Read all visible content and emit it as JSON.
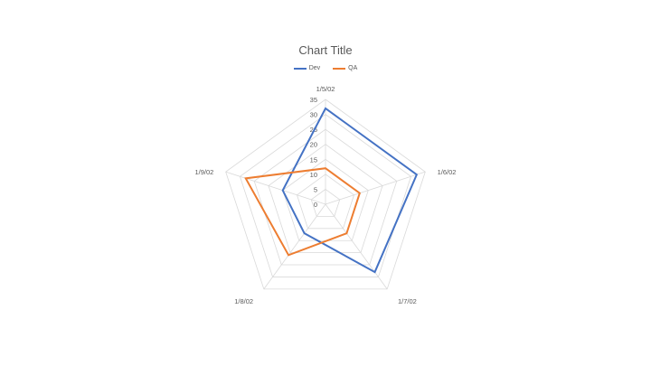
{
  "chart_data": {
    "type": "radar",
    "title": "Chart Title",
    "categories": [
      "1/5/02",
      "1/6/02",
      "1/7/02",
      "1/8/02",
      "1/9/02"
    ],
    "series": [
      {
        "name": "Dev",
        "values": [
          32,
          32,
          28,
          12,
          15
        ],
        "color": "#4472C4"
      },
      {
        "name": "QA",
        "values": [
          12,
          12,
          12,
          21,
          28
        ],
        "color": "#ED7D31"
      }
    ],
    "rlim": [
      0,
      35
    ],
    "ticks": [
      "0",
      "5",
      "10",
      "15",
      "20",
      "25",
      "30",
      "35"
    ],
    "legend_position": "top",
    "grid": true
  }
}
